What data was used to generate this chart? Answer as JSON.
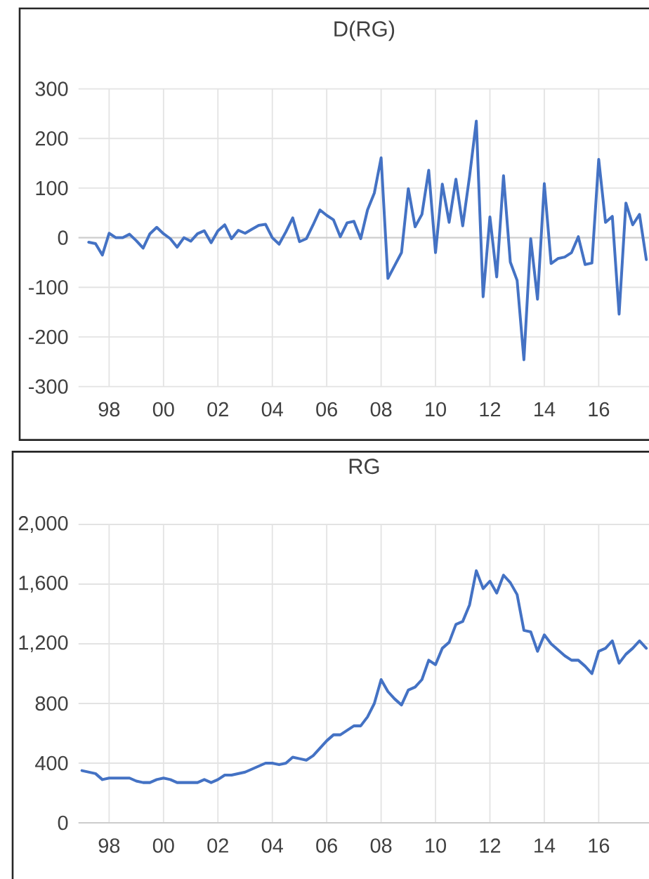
{
  "chart_data": [
    {
      "type": "line",
      "title": "D(RG)",
      "color": "#4472c4",
      "x": [
        1997.25,
        1997.5,
        1997.75,
        1998,
        1998.25,
        1998.5,
        1998.75,
        1999,
        1999.25,
        1999.5,
        1999.75,
        2000,
        2000.25,
        2000.5,
        2000.75,
        2001,
        2001.25,
        2001.5,
        2001.75,
        2002,
        2002.25,
        2002.5,
        2002.75,
        2003,
        2003.25,
        2003.5,
        2003.75,
        2004,
        2004.25,
        2004.5,
        2004.75,
        2005,
        2005.25,
        2005.5,
        2005.75,
        2006,
        2006.25,
        2006.5,
        2006.75,
        2007,
        2007.25,
        2007.5,
        2007.75,
        2008,
        2008.25,
        2008.5,
        2008.75,
        2009,
        2009.25,
        2009.5,
        2009.75,
        2010,
        2010.25,
        2010.5,
        2010.75,
        2011,
        2011.25,
        2011.5,
        2011.75,
        2012,
        2012.25,
        2012.5,
        2012.75,
        2013,
        2013.25,
        2013.5,
        2013.75,
        2014,
        2014.25,
        2014.5,
        2014.75,
        2015,
        2015.25,
        2015.5,
        2015.75,
        2016,
        2016.25,
        2016.5,
        2016.75,
        2017,
        2017.25,
        2017.5,
        2017.75
      ],
      "values": [
        -9,
        -12,
        -35,
        9,
        0,
        0,
        7,
        -6,
        -21,
        8,
        21,
        8,
        -2,
        -19,
        0,
        -7,
        8,
        14,
        -10,
        14,
        26,
        -2,
        15,
        9,
        17,
        25,
        27,
        0,
        -13,
        12,
        40,
        -8,
        -2,
        26,
        56,
        45,
        36,
        2,
        30,
        33,
        -2,
        56,
        90,
        161,
        -82,
        -56,
        -30,
        99,
        22,
        47,
        136,
        -30,
        108,
        31,
        118,
        24,
        123,
        235,
        -119,
        42,
        -79,
        125,
        -49,
        -86,
        -246,
        -2,
        -124,
        109,
        -52,
        -42,
        -39,
        -30,
        2,
        -54,
        -51,
        158,
        31,
        43,
        -154,
        70,
        26,
        47,
        -44
      ],
      "xlim": [
        1996.875,
        2017.875
      ],
      "xticks": [
        {
          "value": 1998,
          "label": "98"
        },
        {
          "value": 2000,
          "label": "00"
        },
        {
          "value": 2002,
          "label": "02"
        },
        {
          "value": 2004,
          "label": "04"
        },
        {
          "value": 2006,
          "label": "06"
        },
        {
          "value": 2008,
          "label": "08"
        },
        {
          "value": 2010,
          "label": "10"
        },
        {
          "value": 2012,
          "label": "12"
        },
        {
          "value": 2014,
          "label": "14"
        },
        {
          "value": 2016,
          "label": "16"
        }
      ],
      "ylim": [
        -300,
        300
      ],
      "yticks": [
        -300,
        -200,
        -100,
        0,
        100,
        200,
        300
      ],
      "grid": true
    },
    {
      "type": "line",
      "title": "RG",
      "color": "#4472c4",
      "x": [
        1997,
        1997.25,
        1997.5,
        1997.75,
        1998,
        1998.25,
        1998.5,
        1998.75,
        1999,
        1999.25,
        1999.5,
        1999.75,
        2000,
        2000.25,
        2000.5,
        2000.75,
        2001,
        2001.25,
        2001.5,
        2001.75,
        2002,
        2002.25,
        2002.5,
        2002.75,
        2003,
        2003.25,
        2003.5,
        2003.75,
        2004,
        2004.25,
        2004.5,
        2004.75,
        2005,
        2005.25,
        2005.5,
        2005.75,
        2006,
        2006.25,
        2006.5,
        2006.75,
        2007,
        2007.25,
        2007.5,
        2007.75,
        2008,
        2008.25,
        2008.5,
        2008.75,
        2009,
        2009.25,
        2009.5,
        2009.75,
        2010,
        2010.25,
        2010.5,
        2010.75,
        2011,
        2011.25,
        2011.5,
        2011.75,
        2012,
        2012.25,
        2012.5,
        2012.75,
        2013,
        2013.25,
        2013.5,
        2013.75,
        2014,
        2014.25,
        2014.5,
        2014.75,
        2015,
        2015.25,
        2015.5,
        2015.75,
        2016,
        2016.25,
        2016.5,
        2016.75,
        2017,
        2017.25,
        2017.5,
        2017.75
      ],
      "values": [
        350,
        340,
        330,
        290,
        300,
        300,
        300,
        300,
        280,
        270,
        270,
        290,
        300,
        290,
        270,
        270,
        270,
        270,
        290,
        270,
        290,
        320,
        320,
        330,
        340,
        360,
        380,
        400,
        400,
        390,
        400,
        440,
        430,
        420,
        450,
        500,
        550,
        590,
        590,
        620,
        650,
        650,
        710,
        800,
        960,
        880,
        830,
        790,
        890,
        910,
        960,
        1090,
        1060,
        1170,
        1210,
        1330,
        1350,
        1460,
        1690,
        1570,
        1620,
        1540,
        1660,
        1610,
        1530,
        1290,
        1280,
        1150,
        1260,
        1200,
        1160,
        1120,
        1090,
        1090,
        1050,
        1000,
        1150,
        1170,
        1220,
        1070,
        1130,
        1170,
        1220,
        1170
      ],
      "xlim": [
        1996.875,
        2017.875
      ],
      "xticks": [
        {
          "value": 1998,
          "label": "98"
        },
        {
          "value": 2000,
          "label": "00"
        },
        {
          "value": 2002,
          "label": "02"
        },
        {
          "value": 2004,
          "label": "04"
        },
        {
          "value": 2006,
          "label": "06"
        },
        {
          "value": 2008,
          "label": "08"
        },
        {
          "value": 2010,
          "label": "10"
        },
        {
          "value": 2012,
          "label": "12"
        },
        {
          "value": 2014,
          "label": "14"
        },
        {
          "value": 2016,
          "label": "16"
        }
      ],
      "ylim": [
        0,
        2000
      ],
      "yticks": [
        0,
        400,
        800,
        {
          "value": 1200,
          "label": "1,200"
        },
        {
          "value": 1600,
          "label": "1,600"
        },
        {
          "value": 2000,
          "label": "2,000"
        }
      ],
      "grid": true
    }
  ]
}
